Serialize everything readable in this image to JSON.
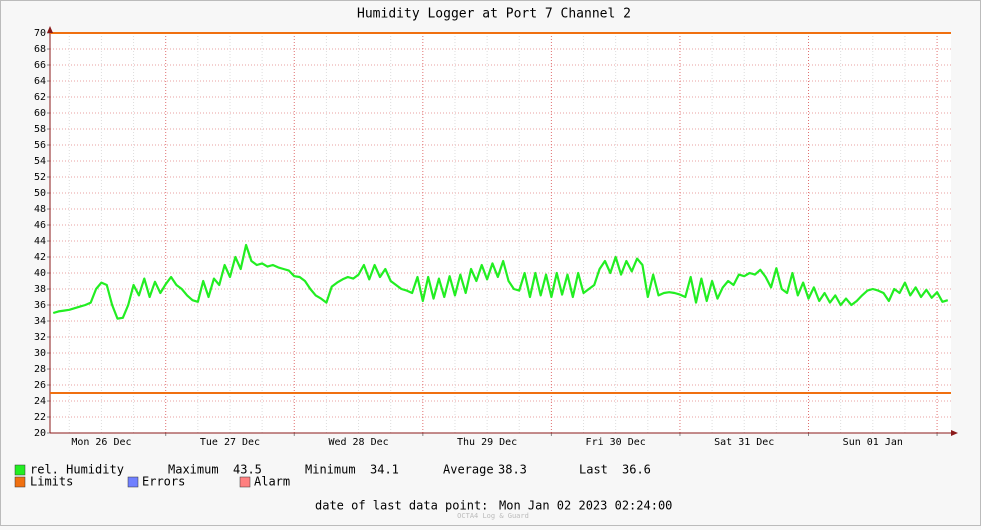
{
  "chart_data": {
    "type": "line",
    "title": "Humidity Logger at Port 7 Channel 2",
    "xlim": [
      2.4,
      170.6
    ],
    "xticks": [
      {
        "value": 12,
        "label": "Mon 26 Dec"
      },
      {
        "value": 36,
        "label": "Tue 27 Dec"
      },
      {
        "value": 60,
        "label": "Wed 28 Dec"
      },
      {
        "value": 84,
        "label": "Thu 29 Dec"
      },
      {
        "value": 108,
        "label": "Fri 30 Dec"
      },
      {
        "value": 132,
        "label": "Sat 31 Dec"
      },
      {
        "value": 156,
        "label": "Sun 01 Jan"
      }
    ],
    "xgrid_major": [
      24,
      48,
      72,
      96,
      120,
      144,
      168
    ],
    "xgrid_minor": [
      6,
      12,
      18,
      30,
      36,
      42,
      54,
      60,
      66,
      78,
      84,
      90,
      102,
      108,
      114,
      126,
      132,
      138,
      150,
      156,
      162
    ],
    "ylim": [
      20,
      70
    ],
    "yticks": [
      20,
      22,
      24,
      26,
      28,
      30,
      32,
      34,
      36,
      38,
      40,
      42,
      44,
      46,
      48,
      50,
      52,
      54,
      56,
      58,
      60,
      62,
      64,
      66,
      68,
      70
    ],
    "grid": true,
    "series": [
      {
        "name": "rel. Humidity",
        "color": "#22ee22",
        "x": [
          3,
          4,
          5,
          6,
          7,
          8,
          9,
          10,
          11,
          12,
          13,
          14,
          15,
          16,
          17,
          18,
          19,
          20,
          21,
          22,
          23,
          24,
          25,
          26,
          27,
          28,
          29,
          30,
          31,
          32,
          33,
          34,
          35,
          36,
          37,
          38,
          39,
          40,
          41,
          42,
          43,
          44,
          45,
          46,
          47,
          48,
          49,
          50,
          51,
          52,
          53,
          54,
          55,
          56,
          57,
          58,
          59,
          60,
          61,
          62,
          63,
          64,
          65,
          66,
          67,
          68,
          69,
          70,
          71,
          72,
          73,
          74,
          75,
          76,
          77,
          78,
          79,
          80,
          81,
          82,
          83,
          84,
          85,
          86,
          87,
          88,
          89,
          90,
          91,
          92,
          93,
          94,
          95,
          96,
          97,
          98,
          99,
          100,
          101,
          102,
          103,
          104,
          105,
          106,
          107,
          108,
          109,
          110,
          111,
          112,
          113,
          114,
          115,
          116,
          117,
          118,
          119,
          120,
          121,
          122,
          123,
          124,
          125,
          126,
          127,
          128,
          129,
          130,
          131,
          132,
          133,
          134,
          135,
          136,
          137,
          138,
          139,
          140,
          141,
          142,
          143,
          144,
          145,
          146,
          147,
          148,
          149,
          150,
          151,
          152,
          153,
          154,
          155,
          156,
          157,
          158,
          159,
          160,
          161,
          162,
          163,
          164,
          165,
          166,
          167,
          168,
          169,
          170
        ],
        "values": [
          35.0,
          35.2,
          35.3,
          35.4,
          35.6,
          35.8,
          36.0,
          36.3,
          38.0,
          38.8,
          38.5,
          36.0,
          34.3,
          34.4,
          36.0,
          38.5,
          37.2,
          39.3,
          37.0,
          38.9,
          37.5,
          38.6,
          39.5,
          38.5,
          38.0,
          37.2,
          36.6,
          36.4,
          39.0,
          37.0,
          39.3,
          38.5,
          41.0,
          39.5,
          42.0,
          40.5,
          43.5,
          41.5,
          41.0,
          41.2,
          40.8,
          41.0,
          40.7,
          40.5,
          40.3,
          39.6,
          39.5,
          39.0,
          38.0,
          37.2,
          36.8,
          36.3,
          38.3,
          38.8,
          39.2,
          39.5,
          39.3,
          39.8,
          41.0,
          39.2,
          41.0,
          39.5,
          40.5,
          39.0,
          38.5,
          38.0,
          37.8,
          37.5,
          39.5,
          36.5,
          39.5,
          36.8,
          39.3,
          37.0,
          39.6,
          37.2,
          39.8,
          37.5,
          40.5,
          39.0,
          41.0,
          39.2,
          41.2,
          39.5,
          41.5,
          39.0,
          38.0,
          37.8,
          40.0,
          37.0,
          40.0,
          37.2,
          39.8,
          37.0,
          40.0,
          37.3,
          39.8,
          37.0,
          40.0,
          37.5,
          38.0,
          38.5,
          40.5,
          41.5,
          40.0,
          42.0,
          39.8,
          41.5,
          40.2,
          41.8,
          41.0,
          37.0,
          39.8,
          37.2,
          37.5,
          37.6,
          37.5,
          37.3,
          37.0,
          39.5,
          36.3,
          39.3,
          36.5,
          39.0,
          36.8,
          38.2,
          39.0,
          38.5,
          39.8,
          39.6,
          40.0,
          39.8,
          40.4,
          39.5,
          38.2,
          40.6,
          38.0,
          37.5,
          40.0,
          37.2,
          38.8,
          36.8,
          38.2,
          36.5,
          37.5,
          36.3,
          37.2,
          36.0,
          36.8,
          36.0,
          36.5,
          37.2,
          37.8,
          38.0,
          37.8,
          37.5,
          36.5,
          38.0,
          37.5,
          38.8,
          37.2,
          38.2,
          37.0,
          37.9,
          36.9,
          37.6,
          36.4,
          36.6
        ]
      }
    ],
    "limits": {
      "name": "Limits",
      "color": "#f07010",
      "values": [
        70,
        25
      ]
    },
    "stats": [
      {
        "label": "Maximum",
        "value": 43.5
      },
      {
        "label": "Minimum",
        "value": 34.1
      },
      {
        "label": "Average",
        "value": 38.3
      },
      {
        "label": "Last",
        "value": 36.6
      }
    ],
    "legend_extra": [
      {
        "name": "Errors",
        "color": "#7080ff"
      },
      {
        "name": "Alarm",
        "color": "#ff8080"
      }
    ],
    "footer_label": "date of last data point:",
    "footer_date": "Mon Jan 02 2023 02:24:00",
    "watermark": "OCTA4 Log & Guard"
  }
}
